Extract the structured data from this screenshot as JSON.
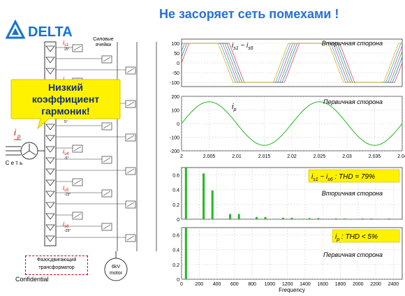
{
  "brand": {
    "name": "DELTA"
  },
  "title": "Не засоряет сеть помехами !",
  "callout": {
    "text_lines": [
      "Низкий",
      "коэффициент",
      "гармоник!"
    ]
  },
  "diagram": {
    "power_cells_label_lines": [
      "Силовые",
      "ячейки"
    ],
    "grid_label": "С е т ь",
    "primary_current_label": "i",
    "primary_current_sub": "p",
    "secondary_labels": [
      {
        "i": "i",
        "sub": "s1"
      },
      {
        "i": "i",
        "sub": "s2"
      },
      {
        "i": "i",
        "sub": "s3"
      },
      {
        "i": "i",
        "sub": "s4"
      },
      {
        "i": "i",
        "sub": "s5"
      },
      {
        "i": "i",
        "sub": "s6"
      }
    ],
    "phase_shifts": [
      "25°",
      "15°",
      "5°",
      "-5°",
      "-15°",
      "-25°"
    ],
    "transformer_label_lines": [
      "Фазосдвигающий",
      "трансформатор"
    ],
    "motor_label_lines": [
      "6kV",
      "motor"
    ],
    "confidential": "Confidential"
  },
  "panels": {
    "p1": {
      "label": "Вторичная сторона",
      "math": "i",
      "math_a_sub": "s1",
      "math_tilde": "~",
      "math_b_sub": "s6",
      "y_ticks": [
        "100",
        "50",
        "0",
        "-50",
        "-100"
      ]
    },
    "p2": {
      "label": "Первичная сторона",
      "math": "i",
      "math_sub": "p",
      "y_ticks": [
        "200",
        "100",
        "0",
        "-100",
        "-200"
      ],
      "x_ticks": [
        "2",
        "2.005",
        "2.01",
        "2.015",
        "2.02",
        "2.025",
        "2.03",
        "2.035",
        "2.04"
      ]
    },
    "p3": {
      "label": "Вторичная сторона",
      "box_text_prefix": "i",
      "box_sub1": "s1",
      "box_mid": " ~ i",
      "box_sub2": "s6",
      "box_suffix": " : THD = 79%",
      "y_ticks": [
        "0.6",
        "0.4",
        "0.2",
        "0"
      ]
    },
    "p4": {
      "label": "Первичная сторона",
      "box_prefix": "i",
      "box_sub": "p",
      "box_suffix": " : THD < 5%",
      "y_ticks": [
        "0.6",
        "0.4",
        "0.2",
        "0"
      ],
      "x_ticks": [
        "0",
        "200",
        "400",
        "600",
        "800",
        "1000",
        "1200",
        "1400",
        "1600",
        "1800",
        "2000",
        "2200",
        "2400"
      ],
      "x_label": "Frequency"
    }
  },
  "chart_data": [
    {
      "type": "line",
      "title": "Вторичная сторона",
      "series_note": "six phase-shifted secondary currents i_s1 ~ i_s6",
      "x": [
        2,
        2.04
      ],
      "ylim": [
        -120,
        120
      ],
      "amplitude": 100
    },
    {
      "type": "line",
      "title": "Первичная сторона",
      "series": [
        {
          "name": "i_p",
          "values": [
            0,
            160,
            0,
            -160,
            0,
            160,
            0,
            -160,
            0
          ]
        }
      ],
      "x": [
        2,
        2.005,
        2.01,
        2.015,
        2.02,
        2.025,
        2.03,
        2.035,
        2.04
      ],
      "ylim": [
        -200,
        200
      ]
    },
    {
      "type": "bar",
      "title": "Вторичная сторона",
      "categories": [
        50,
        250,
        350,
        550,
        650,
        850,
        950,
        1150,
        1250,
        1450,
        1550,
        1750,
        1850,
        2050,
        2150,
        2350
      ],
      "values": [
        0.7,
        0.62,
        0.39,
        0.07,
        0.07,
        0.03,
        0.03,
        0.02,
        0.02,
        0.015,
        0.015,
        0.01,
        0.01,
        0.01,
        0.01,
        0.01
      ],
      "xlabel": "",
      "xlim": [
        0,
        2500
      ],
      "ylim": [
        0,
        0.7
      ]
    },
    {
      "type": "bar",
      "title": "Первичная сторона",
      "categories": [
        50
      ],
      "values": [
        0.7
      ],
      "xlabel": "Frequency",
      "xlim": [
        0,
        2500
      ],
      "ylim": [
        0,
        0.7
      ]
    }
  ]
}
